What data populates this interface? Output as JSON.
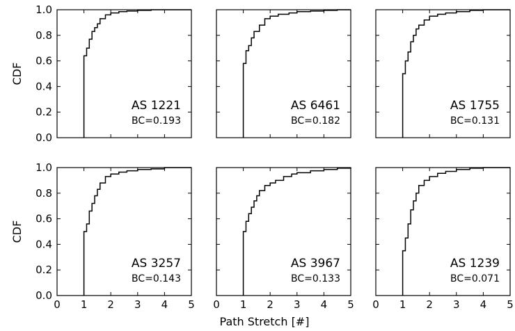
{
  "figure": {
    "xlabel": "Path Stretch [#]",
    "ylabel": "CDF"
  },
  "chart_data": [
    {
      "type": "line",
      "step": true,
      "label": "AS 1221",
      "bc": "BC=0.193",
      "xlim": [
        0,
        5
      ],
      "ylim": [
        0,
        1.0
      ],
      "xticks": [
        "0",
        "1",
        "2",
        "3",
        "4",
        "5"
      ],
      "yticks": [
        "0.0",
        "0.2",
        "0.4",
        "0.6",
        "0.8",
        "1.0"
      ],
      "show_xticklabels": false,
      "show_yticklabels": true,
      "ylabel": "CDF",
      "x": [
        1.0,
        1.0,
        1.1,
        1.2,
        1.3,
        1.4,
        1.5,
        1.6,
        1.8,
        2.0,
        2.3,
        2.6,
        3.0,
        3.5,
        4.0,
        5.0
      ],
      "y": [
        0.0,
        0.64,
        0.7,
        0.77,
        0.83,
        0.86,
        0.89,
        0.93,
        0.96,
        0.975,
        0.985,
        0.99,
        0.995,
        1.0,
        1.0,
        1.0
      ]
    },
    {
      "type": "line",
      "step": true,
      "label": "AS 6461",
      "bc": "BC=0.182",
      "xlim": [
        0,
        5
      ],
      "ylim": [
        0,
        1.0
      ],
      "xticks": [
        "0",
        "1",
        "2",
        "3",
        "4",
        "5"
      ],
      "yticks": [
        "0.0",
        "0.2",
        "0.4",
        "0.6",
        "0.8",
        "1.0"
      ],
      "show_xticklabels": false,
      "show_yticklabels": false,
      "x": [
        1.0,
        1.0,
        1.1,
        1.2,
        1.3,
        1.4,
        1.6,
        1.8,
        2.0,
        2.3,
        2.7,
        3.0,
        3.5,
        4.0,
        4.5,
        5.0
      ],
      "y": [
        0.0,
        0.58,
        0.68,
        0.72,
        0.78,
        0.83,
        0.88,
        0.93,
        0.95,
        0.965,
        0.975,
        0.985,
        0.99,
        0.995,
        1.0,
        1.0
      ]
    },
    {
      "type": "line",
      "step": true,
      "label": "AS 1755",
      "bc": "BC=0.131",
      "xlim": [
        0,
        5
      ],
      "ylim": [
        0,
        1.0
      ],
      "xticks": [
        "0",
        "1",
        "2",
        "3",
        "4",
        "5"
      ],
      "yticks": [
        "0.0",
        "0.2",
        "0.4",
        "0.6",
        "0.8",
        "1.0"
      ],
      "show_xticklabels": false,
      "show_yticklabels": false,
      "x": [
        1.0,
        1.0,
        1.1,
        1.2,
        1.3,
        1.4,
        1.5,
        1.6,
        1.8,
        2.0,
        2.3,
        2.6,
        3.0,
        3.5,
        4.0,
        5.0
      ],
      "y": [
        0.0,
        0.5,
        0.6,
        0.67,
        0.75,
        0.8,
        0.85,
        0.88,
        0.92,
        0.95,
        0.965,
        0.975,
        0.985,
        0.995,
        1.0,
        1.0
      ]
    },
    {
      "type": "line",
      "step": true,
      "label": "AS 3257",
      "bc": "BC=0.143",
      "xlim": [
        0,
        5
      ],
      "ylim": [
        0,
        1.0
      ],
      "xticks": [
        "0",
        "1",
        "2",
        "3",
        "4",
        "5"
      ],
      "yticks": [
        "0.0",
        "0.2",
        "0.4",
        "0.6",
        "0.8",
        "1.0"
      ],
      "show_xticklabels": true,
      "show_yticklabels": true,
      "ylabel": "CDF",
      "x": [
        1.0,
        1.0,
        1.1,
        1.2,
        1.3,
        1.4,
        1.5,
        1.6,
        1.8,
        2.0,
        2.3,
        2.6,
        3.0,
        3.5,
        4.0,
        5.0
      ],
      "y": [
        0.0,
        0.5,
        0.56,
        0.66,
        0.72,
        0.78,
        0.83,
        0.88,
        0.93,
        0.95,
        0.965,
        0.975,
        0.985,
        0.99,
        1.0,
        1.0
      ]
    },
    {
      "type": "line",
      "step": true,
      "label": "AS 3967",
      "bc": "BC=0.133",
      "xlim": [
        0,
        5
      ],
      "ylim": [
        0,
        1.0
      ],
      "xticks": [
        "0",
        "1",
        "2",
        "3",
        "4",
        "5"
      ],
      "yticks": [
        "0.0",
        "0.2",
        "0.4",
        "0.6",
        "0.8",
        "1.0"
      ],
      "show_xticklabels": true,
      "show_yticklabels": false,
      "x": [
        1.0,
        1.0,
        1.1,
        1.2,
        1.3,
        1.4,
        1.5,
        1.6,
        1.8,
        2.0,
        2.2,
        2.5,
        2.8,
        3.0,
        3.5,
        4.0,
        4.5,
        5.0
      ],
      "y": [
        0.0,
        0.5,
        0.58,
        0.64,
        0.69,
        0.74,
        0.78,
        0.82,
        0.86,
        0.88,
        0.9,
        0.93,
        0.95,
        0.96,
        0.975,
        0.985,
        0.995,
        1.0
      ]
    },
    {
      "type": "line",
      "step": true,
      "label": "AS 1239",
      "bc": "BC=0.071",
      "xlim": [
        0,
        5
      ],
      "ylim": [
        0,
        1.0
      ],
      "xticks": [
        "0",
        "1",
        "2",
        "3",
        "4",
        "5"
      ],
      "yticks": [
        "0.0",
        "0.2",
        "0.4",
        "0.6",
        "0.8",
        "1.0"
      ],
      "show_xticklabels": true,
      "show_yticklabels": false,
      "x": [
        1.0,
        1.0,
        1.1,
        1.2,
        1.3,
        1.4,
        1.5,
        1.6,
        1.8,
        2.0,
        2.3,
        2.6,
        3.0,
        3.5,
        4.0,
        5.0
      ],
      "y": [
        0.0,
        0.35,
        0.45,
        0.56,
        0.67,
        0.74,
        0.8,
        0.86,
        0.9,
        0.93,
        0.955,
        0.97,
        0.985,
        0.995,
        1.0,
        1.0
      ]
    }
  ]
}
